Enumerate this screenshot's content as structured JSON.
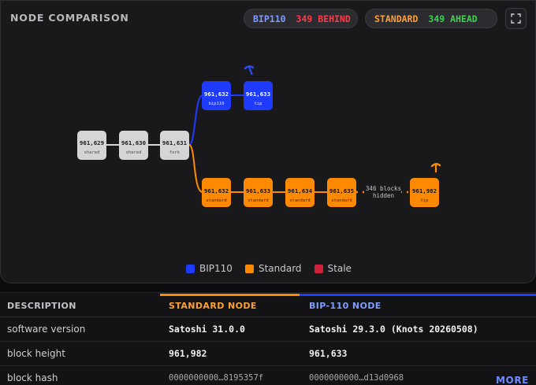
{
  "header": {
    "title": "NODE COMPARISON",
    "bip_pill": {
      "label": "BIP110",
      "status": "349 BEHIND"
    },
    "std_pill": {
      "label": "STANDARD",
      "status": "349 AHEAD"
    }
  },
  "colors": {
    "bip110": "#1f3bff",
    "standard": "#ff8a00",
    "stale": "#d0203a",
    "shared": "#d5d5d8",
    "behind_red": "#ff3b4a",
    "ahead_green": "#3fd14f",
    "bip_text": "#7f9cff",
    "std_text": "#ffa033"
  },
  "graph": {
    "shared_blocks": [
      {
        "height": "961,629",
        "tag": "shared"
      },
      {
        "height": "961,630",
        "tag": "shared"
      },
      {
        "height": "961,631",
        "tag": "fork"
      }
    ],
    "bip_blocks": [
      {
        "height": "961,632",
        "tag": "bip110"
      },
      {
        "height": "961,633",
        "tag": "tip"
      }
    ],
    "std_blocks": [
      {
        "height": "961,632",
        "tag": "standard"
      },
      {
        "height": "961,633",
        "tag": "standard"
      },
      {
        "height": "961,634",
        "tag": "standard"
      },
      {
        "height": "961,635",
        "tag": "standard"
      },
      {
        "height": "961,982",
        "tag": "tip"
      }
    ],
    "hidden_line1": "346 blocks",
    "hidden_line2": "hidden"
  },
  "legend": [
    {
      "label": "BIP110",
      "color": "#1f3bff"
    },
    {
      "label": "Standard",
      "color": "#ff8a00"
    },
    {
      "label": "Stale",
      "color": "#d0203a"
    }
  ],
  "table": {
    "headers": {
      "description": "DESCRIPTION",
      "standard": "STANDARD NODE",
      "bip": "BIP-110 NODE"
    },
    "rows": [
      {
        "label": "software version",
        "standard": "Satoshi 31.0.0",
        "bip": "Satoshi 29.3.0 (Knots 20260508)"
      },
      {
        "label": "block height",
        "standard": "961,982",
        "bip": "961,633"
      },
      {
        "label": "block hash",
        "standard": "0000000000…8195357f",
        "bip": "0000000000…d13d0968"
      }
    ],
    "more_label": "MORE"
  }
}
